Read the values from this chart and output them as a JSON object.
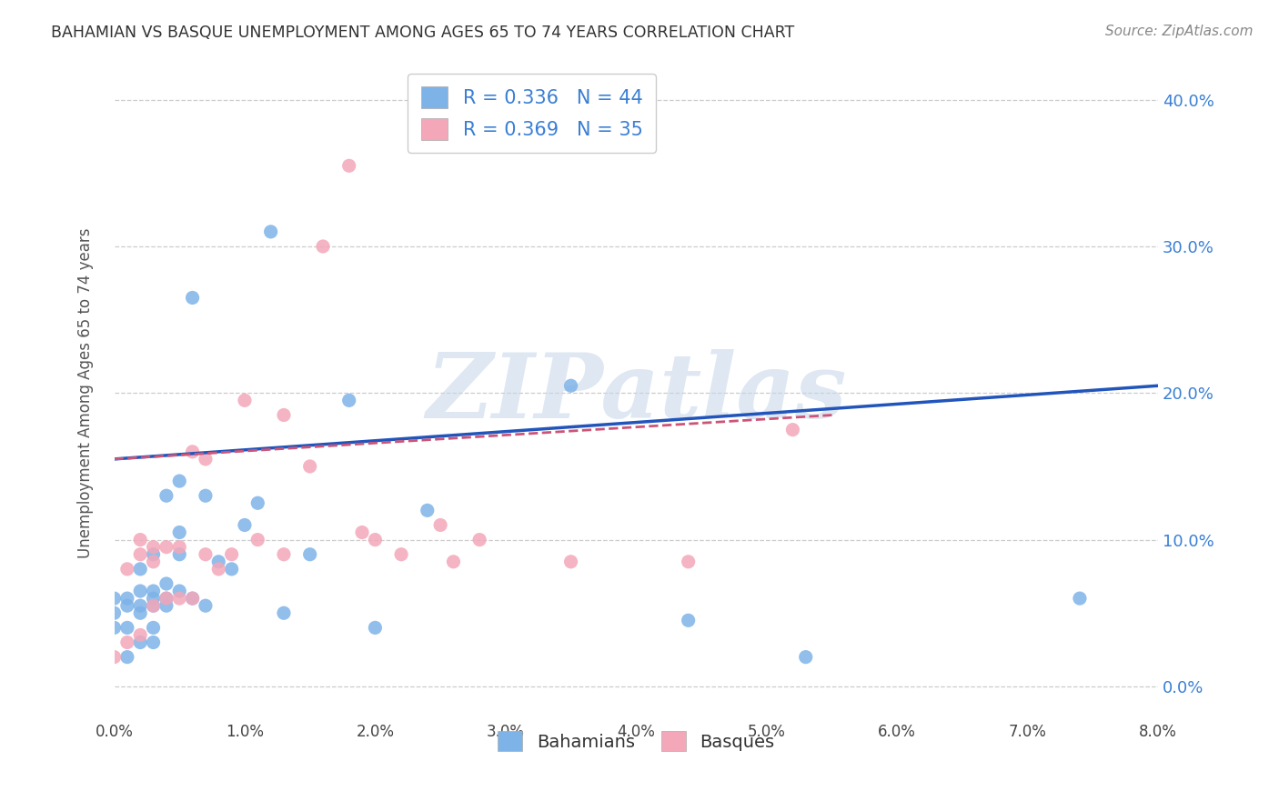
{
  "title": "BAHAMIAN VS BASQUE UNEMPLOYMENT AMONG AGES 65 TO 74 YEARS CORRELATION CHART",
  "source": "Source: ZipAtlas.com",
  "ylabel": "Unemployment Among Ages 65 to 74 years",
  "xlim": [
    0.0,
    0.08
  ],
  "ylim": [
    -0.02,
    0.42
  ],
  "xticks": [
    0.0,
    0.01,
    0.02,
    0.03,
    0.04,
    0.05,
    0.06,
    0.07,
    0.08
  ],
  "yticks": [
    0.0,
    0.1,
    0.2,
    0.3,
    0.4
  ],
  "bahamians_color": "#7eb3e8",
  "basques_color": "#f4a7b9",
  "trend_blue": "#2255bb",
  "trend_pink": "#cc5577",
  "legend_text_color": "#3a7fd5",
  "R_bahamian": 0.336,
  "N_bahamian": 44,
  "R_basque": 0.369,
  "N_basque": 35,
  "bah_trend_x0": 0.0,
  "bah_trend_y0": 0.155,
  "bah_trend_x1": 0.08,
  "bah_trend_y1": 0.205,
  "bas_trend_x0": 0.0,
  "bas_trend_y0": 0.155,
  "bas_trend_x1": 0.055,
  "bas_trend_y1": 0.185,
  "bahamians_x": [
    0.0,
    0.0,
    0.0,
    0.001,
    0.001,
    0.001,
    0.001,
    0.002,
    0.002,
    0.002,
    0.002,
    0.002,
    0.003,
    0.003,
    0.003,
    0.003,
    0.003,
    0.003,
    0.004,
    0.004,
    0.004,
    0.004,
    0.005,
    0.005,
    0.005,
    0.005,
    0.006,
    0.006,
    0.007,
    0.007,
    0.008,
    0.009,
    0.01,
    0.011,
    0.012,
    0.013,
    0.015,
    0.018,
    0.02,
    0.024,
    0.035,
    0.044,
    0.053,
    0.074
  ],
  "bahamians_y": [
    0.04,
    0.05,
    0.06,
    0.02,
    0.04,
    0.055,
    0.06,
    0.03,
    0.05,
    0.055,
    0.065,
    0.08,
    0.03,
    0.04,
    0.055,
    0.06,
    0.065,
    0.09,
    0.055,
    0.06,
    0.07,
    0.13,
    0.065,
    0.09,
    0.105,
    0.14,
    0.06,
    0.265,
    0.055,
    0.13,
    0.085,
    0.08,
    0.11,
    0.125,
    0.31,
    0.05,
    0.09,
    0.195,
    0.04,
    0.12,
    0.205,
    0.045,
    0.02,
    0.06
  ],
  "basques_x": [
    0.0,
    0.001,
    0.001,
    0.002,
    0.002,
    0.002,
    0.003,
    0.003,
    0.003,
    0.004,
    0.004,
    0.005,
    0.005,
    0.006,
    0.006,
    0.007,
    0.007,
    0.008,
    0.009,
    0.01,
    0.011,
    0.013,
    0.013,
    0.015,
    0.016,
    0.018,
    0.019,
    0.02,
    0.022,
    0.025,
    0.026,
    0.028,
    0.035,
    0.044,
    0.052
  ],
  "basques_y": [
    0.02,
    0.03,
    0.08,
    0.035,
    0.09,
    0.1,
    0.055,
    0.085,
    0.095,
    0.06,
    0.095,
    0.06,
    0.095,
    0.06,
    0.16,
    0.09,
    0.155,
    0.08,
    0.09,
    0.195,
    0.1,
    0.09,
    0.185,
    0.15,
    0.3,
    0.355,
    0.105,
    0.1,
    0.09,
    0.11,
    0.085,
    0.1,
    0.085,
    0.085,
    0.175
  ],
  "watermark": "ZIPatlas",
  "background_color": "#ffffff"
}
